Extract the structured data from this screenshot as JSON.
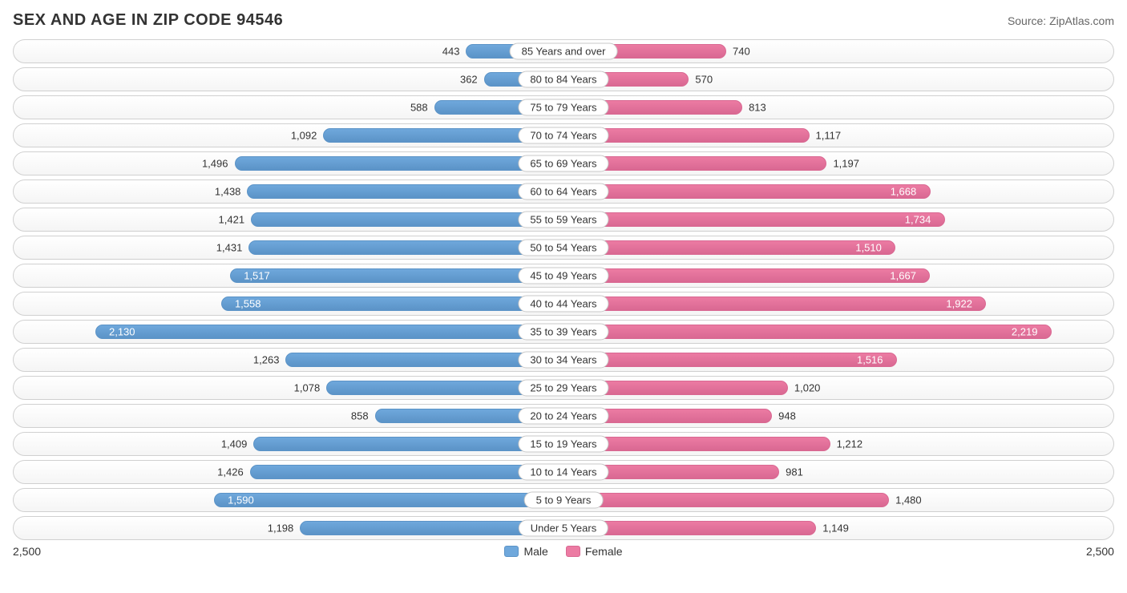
{
  "title": "SEX AND AGE IN ZIP CODE 94546",
  "source": "Source: ZipAtlas.com",
  "chart": {
    "type": "population_pyramid",
    "axis_max": 2500,
    "axis_label_left": "2,500",
    "axis_label_right": "2,500",
    "inside_label_threshold": 1500,
    "male_color": "#6fa8dc",
    "male_border": "#5b93c7",
    "female_color": "#ec7ba3",
    "female_border": "#d96892",
    "track_border": "#d0d0d0",
    "background": "#ffffff",
    "label_fontsize": 13,
    "title_fontsize": 20,
    "legend": {
      "male_label": "Male",
      "female_label": "Female"
    },
    "rows": [
      {
        "label": "85 Years and over",
        "male": 443,
        "male_fmt": "443",
        "female": 740,
        "female_fmt": "740"
      },
      {
        "label": "80 to 84 Years",
        "male": 362,
        "male_fmt": "362",
        "female": 570,
        "female_fmt": "570"
      },
      {
        "label": "75 to 79 Years",
        "male": 588,
        "male_fmt": "588",
        "female": 813,
        "female_fmt": "813"
      },
      {
        "label": "70 to 74 Years",
        "male": 1092,
        "male_fmt": "1,092",
        "female": 1117,
        "female_fmt": "1,117"
      },
      {
        "label": "65 to 69 Years",
        "male": 1496,
        "male_fmt": "1,496",
        "female": 1197,
        "female_fmt": "1,197"
      },
      {
        "label": "60 to 64 Years",
        "male": 1438,
        "male_fmt": "1,438",
        "female": 1668,
        "female_fmt": "1,668"
      },
      {
        "label": "55 to 59 Years",
        "male": 1421,
        "male_fmt": "1,421",
        "female": 1734,
        "female_fmt": "1,734"
      },
      {
        "label": "50 to 54 Years",
        "male": 1431,
        "male_fmt": "1,431",
        "female": 1510,
        "female_fmt": "1,510"
      },
      {
        "label": "45 to 49 Years",
        "male": 1517,
        "male_fmt": "1,517",
        "female": 1667,
        "female_fmt": "1,667"
      },
      {
        "label": "40 to 44 Years",
        "male": 1558,
        "male_fmt": "1,558",
        "female": 1922,
        "female_fmt": "1,922"
      },
      {
        "label": "35 to 39 Years",
        "male": 2130,
        "male_fmt": "2,130",
        "female": 2219,
        "female_fmt": "2,219"
      },
      {
        "label": "30 to 34 Years",
        "male": 1263,
        "male_fmt": "1,263",
        "female": 1516,
        "female_fmt": "1,516"
      },
      {
        "label": "25 to 29 Years",
        "male": 1078,
        "male_fmt": "1,078",
        "female": 1020,
        "female_fmt": "1,020"
      },
      {
        "label": "20 to 24 Years",
        "male": 858,
        "male_fmt": "858",
        "female": 948,
        "female_fmt": "948"
      },
      {
        "label": "15 to 19 Years",
        "male": 1409,
        "male_fmt": "1,409",
        "female": 1212,
        "female_fmt": "1,212"
      },
      {
        "label": "10 to 14 Years",
        "male": 1426,
        "male_fmt": "1,426",
        "female": 981,
        "female_fmt": "981"
      },
      {
        "label": "5 to 9 Years",
        "male": 1590,
        "male_fmt": "1,590",
        "female": 1480,
        "female_fmt": "1,480"
      },
      {
        "label": "Under 5 Years",
        "male": 1198,
        "male_fmt": "1,198",
        "female": 1149,
        "female_fmt": "1,149"
      }
    ]
  }
}
